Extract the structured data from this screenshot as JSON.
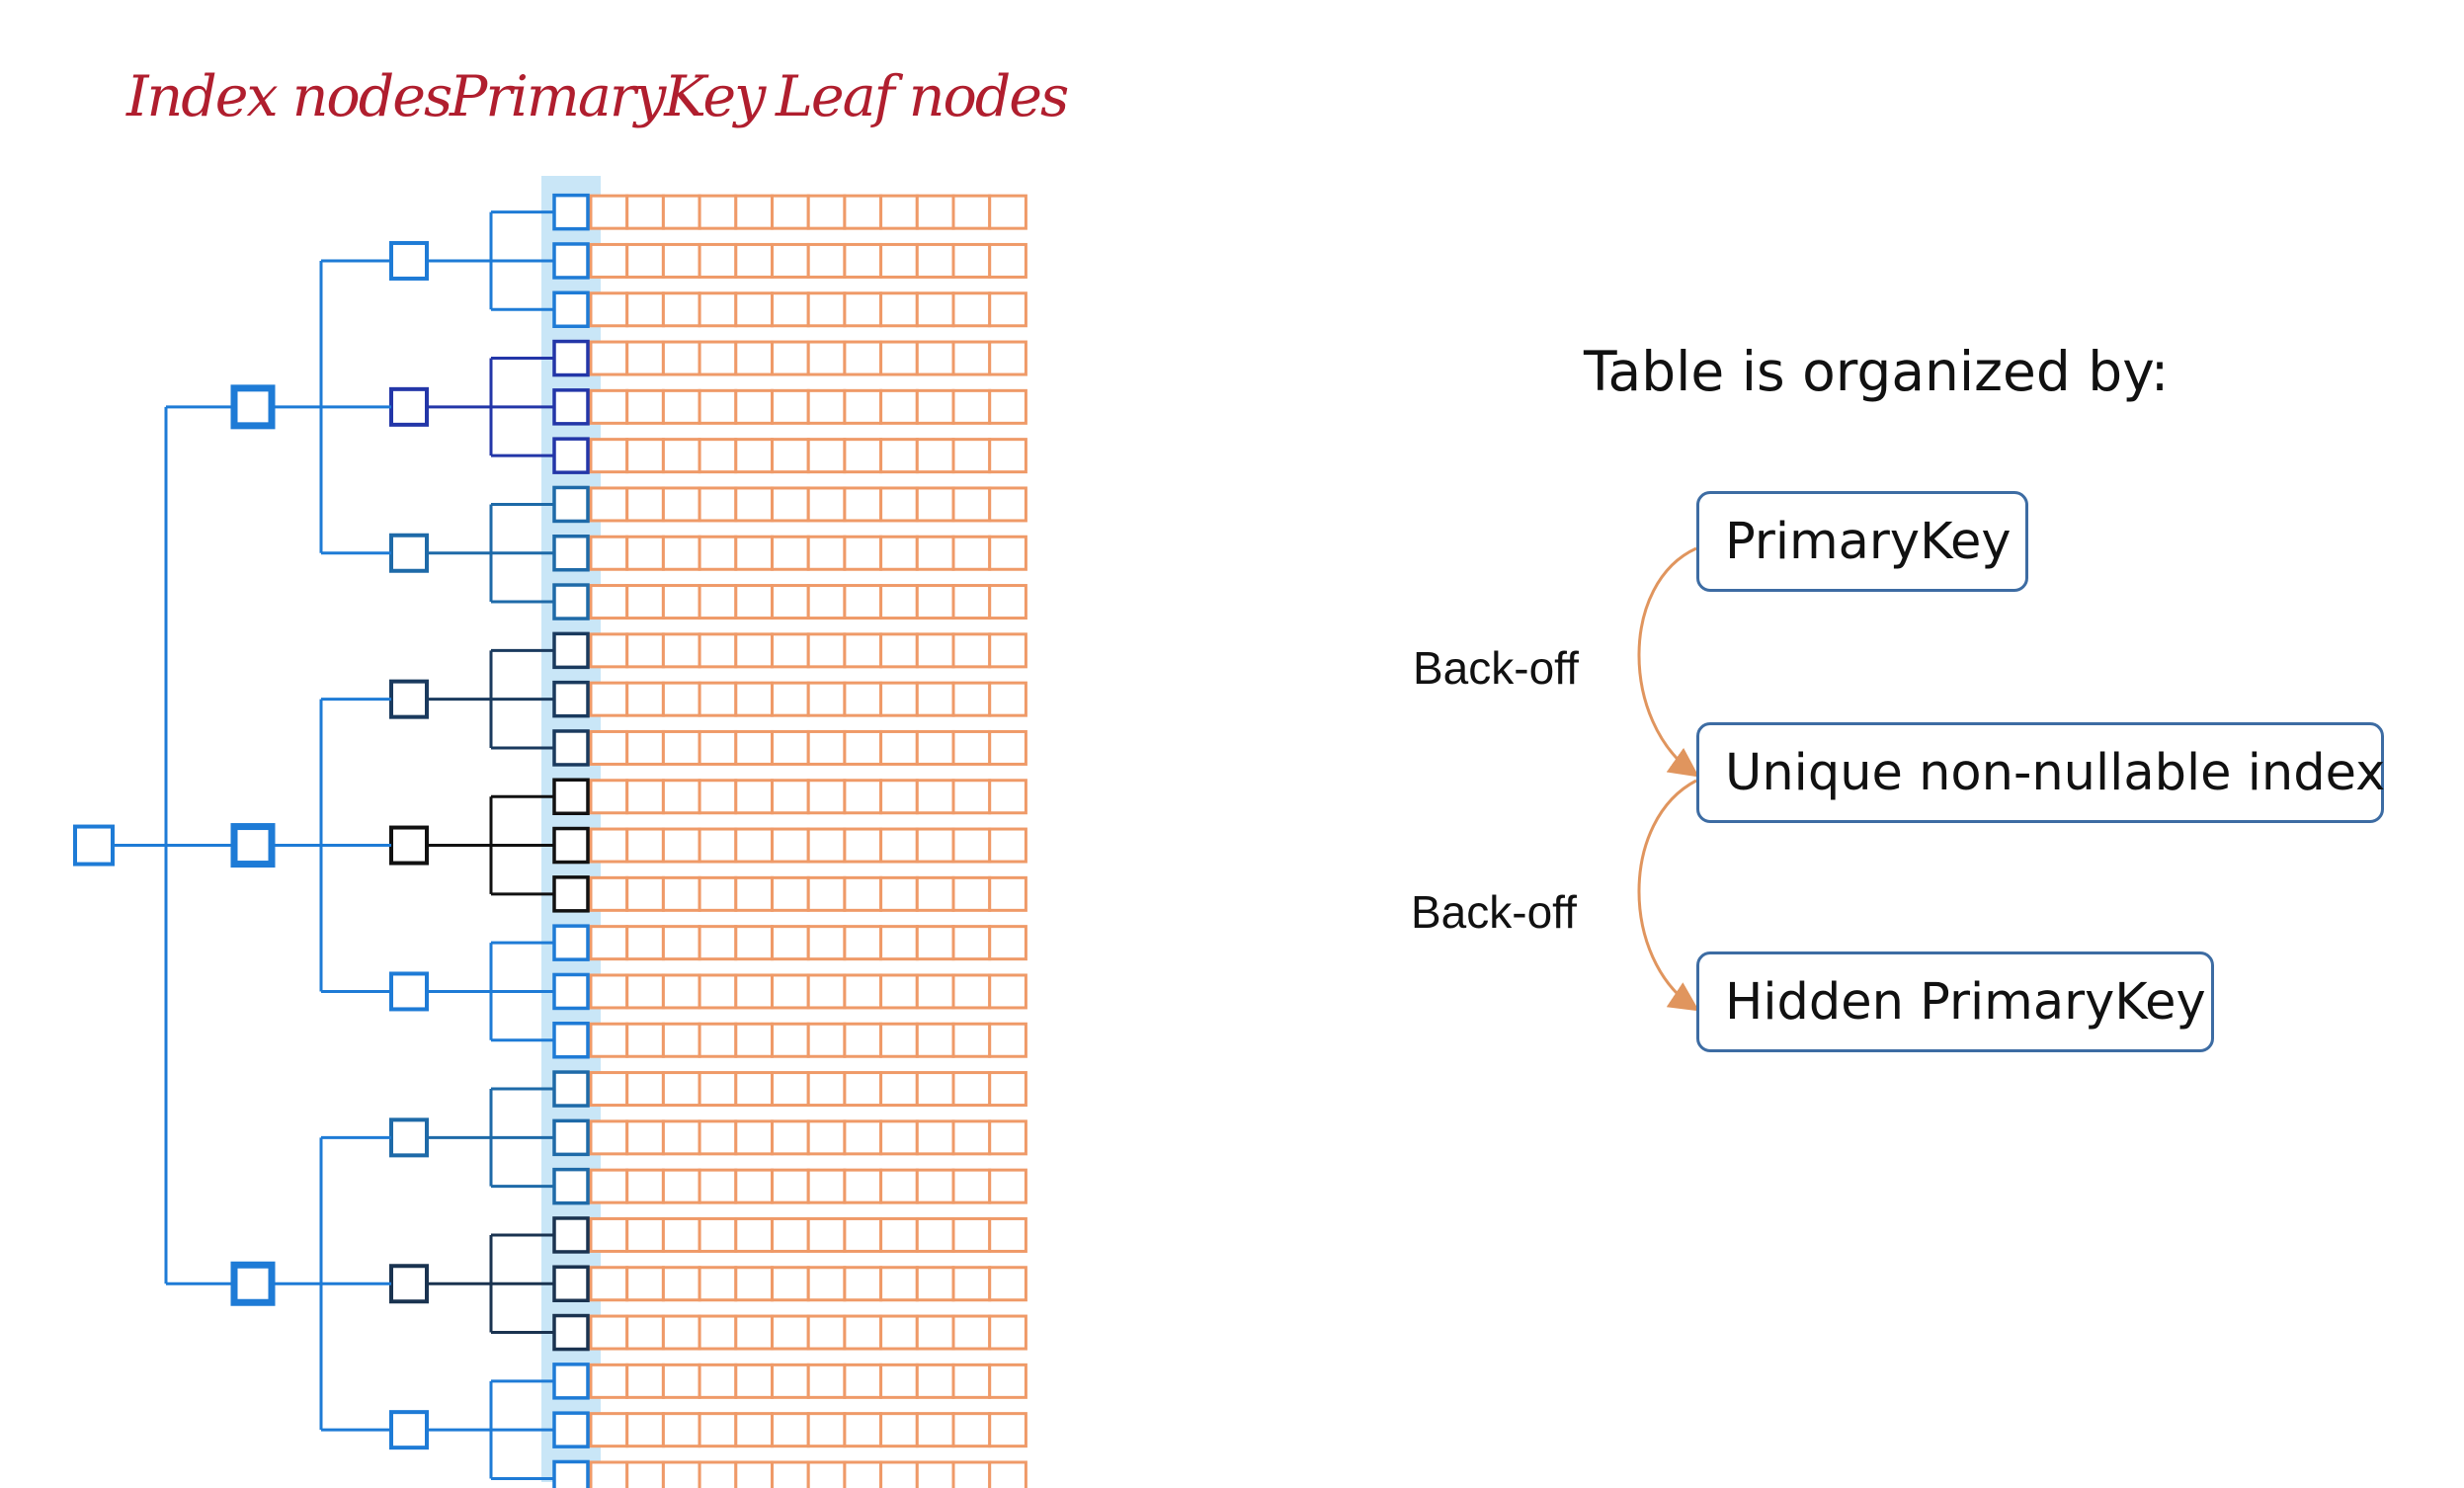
{
  "headers": {
    "index_nodes": "Index nodes",
    "primary_key": "PrimaryKey",
    "leaf_nodes": "Leaf nodes"
  },
  "organization": {
    "title": "Table is organized by:",
    "options": [
      "PrimaryKey",
      "Unique non-nullable index",
      "Hidden PrimaryKey"
    ],
    "backoff_labels": [
      "Back-off",
      "Back-off"
    ]
  },
  "tree": {
    "leaf_cells_per_row": 12,
    "groups": [
      {
        "level1_color": "#1e7bd6",
        "level2_colors": [
          "#1e7bd6",
          "#2336a8",
          "#1e6aa8"
        ]
      },
      {
        "level1_color": "#1e7bd6",
        "level2_colors": [
          "#1a3a5e",
          "#111111",
          "#1e7bd6"
        ]
      },
      {
        "level1_color": "#1e7bd6",
        "level2_colors": [
          "#1e6aa8",
          "#1a3350",
          "#1e7bd6"
        ]
      }
    ]
  },
  "colors": {
    "header_red": "#b01e2e",
    "tree_blue": "#1e7bd6",
    "leaf_orange": "#ef9a68",
    "pk_highlight": "#c9e6f7",
    "box_border": "#3d6ca3",
    "arrow_orange": "#e0955e"
  }
}
